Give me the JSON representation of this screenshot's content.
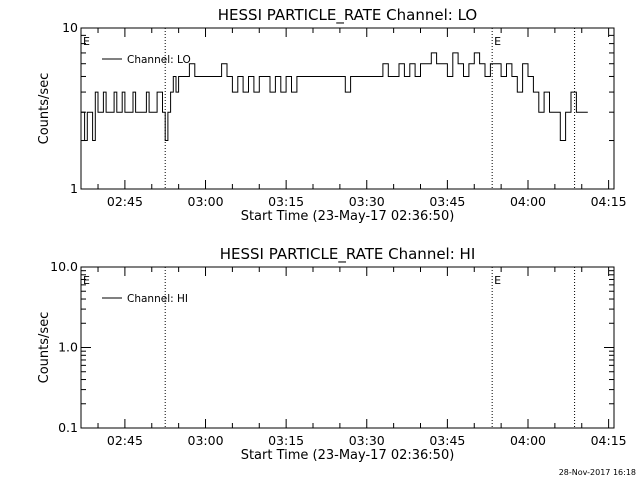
{
  "footer": {
    "timestamp": "28-Nov-2017 16:18"
  },
  "chart_data": [
    {
      "type": "line",
      "title": "HESSI PARTICLE_RATE Channel: LO",
      "xlabel": "Start Time (23-May-17 02:36:50)",
      "ylabel": "Counts/sec",
      "y_scale": "log",
      "ylim": [
        1,
        10
      ],
      "y_ticks": [
        "1",
        "10"
      ],
      "x_ticks": [
        "02:45",
        "03:00",
        "03:15",
        "03:30",
        "03:45",
        "04:00",
        "04:15"
      ],
      "x_range": [
        "02:36:50",
        "04:16:00"
      ],
      "grid": false,
      "legend_position": "top-left",
      "series": [
        {
          "name": "Channel: LO",
          "x": [
            "02:36:50",
            "02:37:30",
            "02:38:00",
            "02:38:30",
            "02:39:00",
            "02:39:30",
            "02:40:00",
            "02:40:30",
            "02:41:00",
            "02:41:30",
            "02:42:00",
            "02:42:30",
            "02:43:00",
            "02:43:30",
            "02:44:00",
            "02:44:30",
            "02:45:00",
            "02:45:30",
            "02:46:00",
            "02:46:30",
            "02:47:00",
            "02:47:30",
            "02:48:00",
            "02:48:30",
            "02:49:00",
            "02:49:30",
            "02:50:00",
            "02:50:30",
            "02:51:00",
            "02:51:30",
            "02:52:00",
            "02:52:30",
            "02:53:00",
            "02:53:30",
            "02:54:00",
            "02:54:30",
            "02:55:00",
            "02:56:00",
            "02:57:00",
            "02:58:00",
            "02:59:00",
            "03:00:00",
            "03:01:00",
            "03:02:00",
            "03:03:00",
            "03:04:00",
            "03:05:00",
            "03:06:00",
            "03:07:00",
            "03:08:00",
            "03:09:00",
            "03:10:00",
            "03:11:00",
            "03:12:00",
            "03:13:00",
            "03:14:00",
            "03:15:00",
            "03:16:00",
            "03:17:00",
            "03:18:00",
            "03:20:00",
            "03:22:00",
            "03:24:00",
            "03:26:00",
            "03:27:00",
            "03:28:00",
            "03:30:00",
            "03:31:00",
            "03:32:00",
            "03:33:00",
            "03:34:00",
            "03:35:00",
            "03:36:00",
            "03:37:00",
            "03:38:00",
            "03:39:00",
            "03:40:00",
            "03:41:00",
            "03:42:00",
            "03:43:00",
            "03:44:00",
            "03:45:00",
            "03:46:00",
            "03:47:00",
            "03:48:00",
            "03:49:00",
            "03:50:00",
            "03:51:00",
            "03:52:00",
            "03:53:00",
            "03:54:00",
            "03:55:00",
            "03:56:00",
            "03:57:00",
            "03:58:00",
            "03:59:00",
            "04:00:00",
            "04:01:00",
            "04:02:00",
            "04:03:00",
            "04:04:00",
            "04:05:00",
            "04:06:00",
            "04:07:00",
            "04:08:00",
            "04:09:00",
            "04:10:00"
          ],
          "values": [
            3,
            2,
            3,
            3,
            2,
            4,
            3,
            3,
            4,
            3,
            3,
            3,
            4,
            3,
            3,
            4,
            3,
            3,
            3,
            4,
            3,
            3,
            3,
            3,
            4,
            3,
            3,
            3,
            4,
            4,
            3,
            2,
            3,
            4,
            5,
            4,
            5,
            5,
            6,
            5,
            5,
            5,
            5,
            5,
            6,
            5,
            4,
            5,
            4,
            5,
            4,
            5,
            5,
            4,
            5,
            4,
            5,
            4,
            5,
            5,
            5,
            5,
            5,
            4,
            5,
            5,
            5,
            5,
            5,
            6,
            5,
            5,
            6,
            5,
            6,
            5,
            6,
            6,
            7,
            6,
            6,
            5,
            7,
            6,
            5,
            6,
            7,
            6,
            5,
            6,
            6,
            5,
            6,
            5,
            4,
            6,
            5,
            4,
            3,
            4,
            3,
            3,
            2,
            3,
            4,
            3,
            3
          ]
        }
      ],
      "markers": [
        {
          "label": "E",
          "x": "02:36:50"
        },
        {
          "label": "E",
          "x": "03:53:20"
        }
      ],
      "vertical_lines": [
        "02:52:30",
        "03:53:20",
        "04:08:40"
      ]
    },
    {
      "type": "line",
      "title": "HESSI PARTICLE_RATE Channel: HI",
      "xlabel": "Start Time (23-May-17 02:36:50)",
      "ylabel": "Counts/sec",
      "y_scale": "log",
      "ylim": [
        0.1,
        10
      ],
      "y_ticks": [
        "0.1",
        "1.0",
        "10.0"
      ],
      "x_ticks": [
        "02:45",
        "03:00",
        "03:15",
        "03:30",
        "03:45",
        "04:00",
        "04:15"
      ],
      "x_range": [
        "02:36:50",
        "04:16:00"
      ],
      "grid": false,
      "legend_position": "top-left",
      "series": [
        {
          "name": "Channel: HI",
          "x": [],
          "values": []
        }
      ],
      "markers": [
        {
          "label": "E",
          "x": "02:36:50"
        },
        {
          "label": "E",
          "x": "03:53:20"
        }
      ],
      "vertical_lines": [
        "02:52:30",
        "03:53:20",
        "04:08:40"
      ]
    }
  ]
}
